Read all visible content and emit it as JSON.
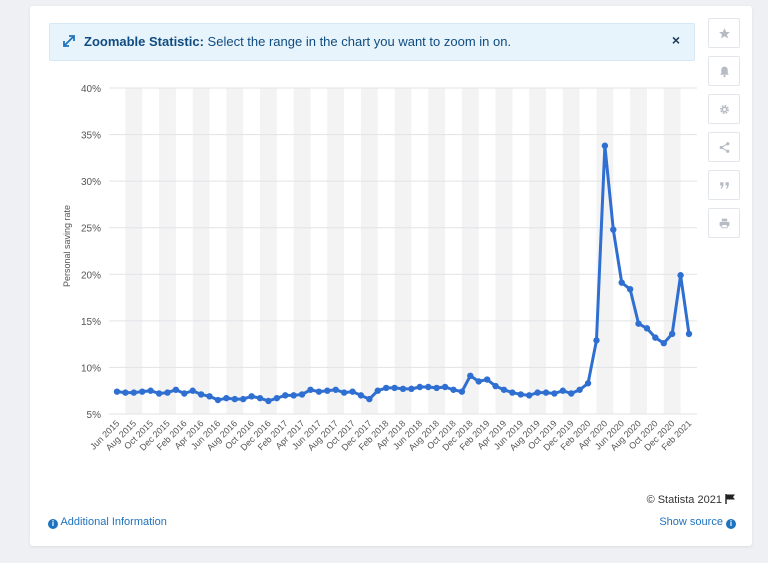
{
  "banner": {
    "title": "Zoomable Statistic:",
    "text": "Select the range in the chart you want to zoom in on.",
    "close": "×"
  },
  "sidebar": {
    "items": [
      {
        "icon": "star-icon"
      },
      {
        "icon": "bell-icon"
      },
      {
        "icon": "gear-icon"
      },
      {
        "icon": "share-icon"
      },
      {
        "icon": "quote-icon"
      },
      {
        "icon": "print-icon"
      }
    ]
  },
  "footer": {
    "copyright": "© Statista 2021",
    "additional_info": "Additional Information",
    "show_source": "Show source"
  },
  "colors": {
    "line": "#2f6fd1",
    "band": "#f3f3f3",
    "accent": "#1e73be"
  },
  "chart_data": {
    "type": "line",
    "title": "",
    "xlabel": "",
    "ylabel": "Personal saving rate",
    "ylim": [
      5,
      40
    ],
    "yticks": [
      5,
      10,
      15,
      20,
      25,
      30,
      35,
      40
    ],
    "ytick_suffix": "%",
    "grid": true,
    "x": [
      "Jun 2015",
      "Jul 2015",
      "Aug 2015",
      "Sep 2015",
      "Oct 2015",
      "Nov 2015",
      "Dec 2015",
      "Jan 2016",
      "Feb 2016",
      "Mar 2016",
      "Apr 2016",
      "May 2016",
      "Jun 2016",
      "Jul 2016",
      "Aug 2016",
      "Sep 2016",
      "Oct 2016",
      "Nov 2016",
      "Dec 2016",
      "Jan 2017",
      "Feb 2017",
      "Mar 2017",
      "Apr 2017",
      "May 2017",
      "Jun 2017",
      "Jul 2017",
      "Aug 2017",
      "Sep 2017",
      "Oct 2017",
      "Nov 2017",
      "Dec 2017",
      "Jan 2018",
      "Feb 2018",
      "Mar 2018",
      "Apr 2018",
      "May 2018",
      "Jun 2018",
      "Jul 2018",
      "Aug 2018",
      "Sep 2018",
      "Oct 2018",
      "Nov 2018",
      "Dec 2018",
      "Jan 2019",
      "Feb 2019",
      "Mar 2019",
      "Apr 2019",
      "May 2019",
      "Jun 2019",
      "Jul 2019",
      "Aug 2019",
      "Sep 2019",
      "Oct 2019",
      "Nov 2019",
      "Dec 2019",
      "Jan 2020",
      "Feb 2020",
      "Mar 2020",
      "Apr 2020",
      "May 2020",
      "Jun 2020",
      "Jul 2020",
      "Aug 2020",
      "Sep 2020",
      "Oct 2020",
      "Nov 2020",
      "Dec 2020",
      "Jan 2021",
      "Feb 2021"
    ],
    "xtick_labels": [
      "Jun 2015",
      "Aug 2015",
      "Oct 2015",
      "Dec 2015",
      "Feb 2016",
      "Apr 2016",
      "Jun 2016",
      "Aug 2016",
      "Oct 2016",
      "Dec 2016",
      "Feb 2017",
      "Apr 2017",
      "Jun 2017",
      "Aug 2017",
      "Oct 2017",
      "Dec 2017",
      "Feb 2018",
      "Apr 2018",
      "Jun 2018",
      "Aug 2018",
      "Oct 2018",
      "Dec 2018",
      "Feb 2019",
      "Apr 2019",
      "Jun 2019",
      "Aug 2019",
      "Oct 2019",
      "Dec 2019",
      "Feb 2020",
      "Apr 2020",
      "Jun 2020",
      "Aug 2020",
      "Oct 2020",
      "Dec 2020",
      "Feb 2021"
    ],
    "series": [
      {
        "values": [
          7.4,
          7.3,
          7.3,
          7.4,
          7.5,
          7.2,
          7.3,
          7.6,
          7.2,
          7.5,
          7.1,
          6.9,
          6.5,
          6.7,
          6.6,
          6.6,
          6.9,
          6.7,
          6.4,
          6.7,
          7.0,
          7.0,
          7.1,
          7.6,
          7.4,
          7.5,
          7.6,
          7.3,
          7.4,
          7.0,
          6.6,
          7.5,
          7.8,
          7.8,
          7.7,
          7.7,
          7.9,
          7.9,
          7.8,
          7.9,
          7.6,
          7.4,
          9.1,
          8.5,
          8.7,
          8.0,
          7.6,
          7.3,
          7.1,
          7.0,
          7.3,
          7.3,
          7.2,
          7.5,
          7.2,
          7.6,
          8.3,
          12.9,
          33.8,
          24.8,
          19.1,
          18.4,
          14.7,
          14.2,
          13.2,
          12.6,
          13.6,
          19.9,
          13.6
        ]
      }
    ]
  }
}
